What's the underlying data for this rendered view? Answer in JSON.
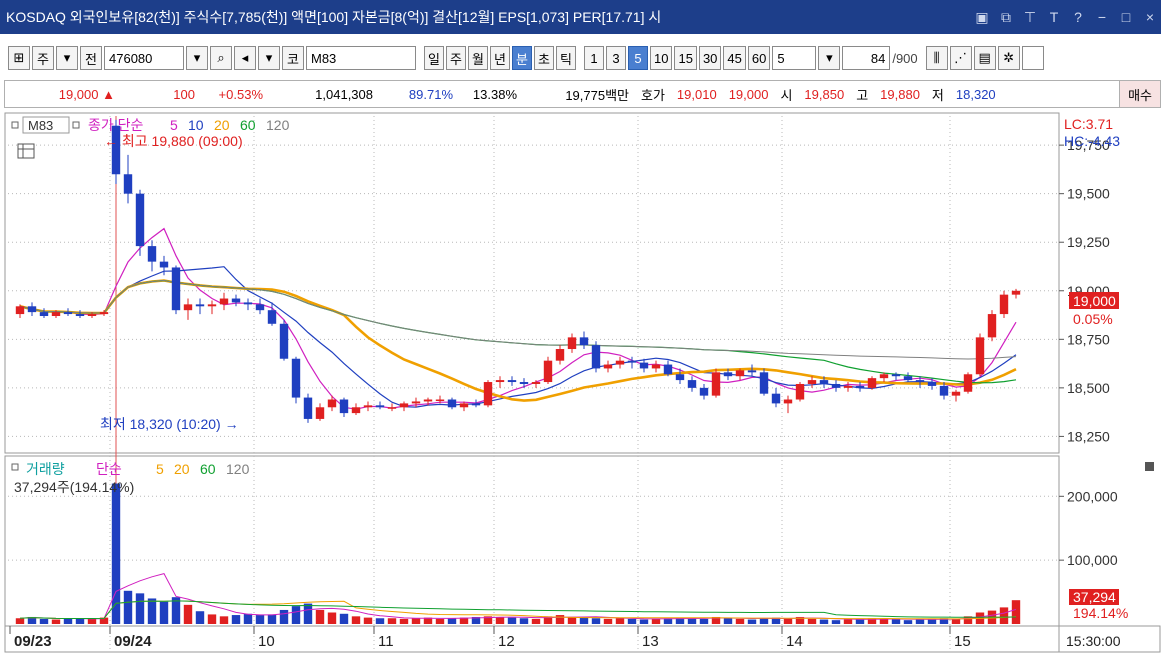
{
  "window": {
    "title": "KOSDAQ 외국인보유[82(천)] 주식수[7,785(천)] 액면[100] 자본금[8(억)] 결산[12월] EPS[1,073] PER[17.71] 시",
    "controls": [
      "minimize",
      "maximize",
      "close"
    ]
  },
  "toolbar": {
    "market": "주",
    "prev": "전",
    "code": "476080",
    "market_short": "코",
    "name": "M83",
    "periods": [
      "일",
      "주",
      "월",
      "년",
      "분",
      "초",
      "틱"
    ],
    "active_period": "분",
    "minutes": [
      "1",
      "3",
      "5",
      "10",
      "15",
      "30",
      "45",
      "60"
    ],
    "active_minute": "5",
    "interval_value": "5",
    "count": "84",
    "count_total": "/900"
  },
  "quote": {
    "price": "19,000",
    "change_arrow": "▲",
    "change": "100",
    "change_pct": "+0.53%",
    "volume": "1,041,308",
    "vol_ratio": "89.71%",
    "turnover": "13.38%",
    "amount": "19,775백만",
    "hoga_label": "호가",
    "bid": "19,010",
    "ask": "19,000",
    "open_label": "시",
    "open": "19,850",
    "high_label": "고",
    "high": "19,880",
    "low_label": "저",
    "low": "18,320",
    "buy_button": "매수"
  },
  "price_panel": {
    "badge": "M83",
    "legend_prefix": "종가 단순",
    "legend_periods": [
      "5",
      "10",
      "20",
      "60",
      "120"
    ],
    "legend_colors": [
      "#d020c0",
      "#2040c0",
      "#f0a000",
      "#10a030",
      "#808080"
    ],
    "lc": "LC:3.71",
    "hc": "HC:-4.43",
    "high_note": "최고 19,880 (09:00)",
    "low_note": "최저 18,320 (10:20)",
    "current_price": "19,000",
    "current_pct": "0.05%"
  },
  "volume_panel": {
    "legend_title": "거래량",
    "legend_prefix": "단순",
    "legend_periods": [
      "5",
      "20",
      "60",
      "120"
    ],
    "current": "37,294주(194.14%)",
    "current_value": "37,294",
    "current_pct": "194.14%"
  },
  "chart_data": {
    "type": "candlestick",
    "price_axis": {
      "ticks": [
        "19,750",
        "19,500",
        "19,250",
        "19,000",
        "18,750",
        "18,500",
        "18,250"
      ],
      "values": [
        19750,
        19500,
        19250,
        19000,
        18750,
        18500,
        18250
      ],
      "ylim": [
        18180,
        19900
      ]
    },
    "volume_axis": {
      "ticks": [
        "200,000",
        "100,000"
      ],
      "values": [
        200000,
        100000
      ],
      "ylim": [
        0,
        260000
      ]
    },
    "time_axis": {
      "labels": [
        "09/23",
        "09/24",
        "10",
        "11",
        "12",
        "13",
        "14",
        "15",
        "15:30:00"
      ]
    },
    "candles": [
      [
        18880,
        18930,
        18860,
        18920
      ],
      [
        18920,
        18940,
        18870,
        18890
      ],
      [
        18890,
        18910,
        18860,
        18870
      ],
      [
        18870,
        18900,
        18860,
        18890
      ],
      [
        18890,
        18910,
        18870,
        18880
      ],
      [
        18880,
        18900,
        18860,
        18870
      ],
      [
        18870,
        18890,
        18860,
        18880
      ],
      [
        18880,
        18900,
        18870,
        18890
      ],
      [
        19850,
        19880,
        19550,
        19600
      ],
      [
        19600,
        19700,
        19450,
        19500
      ],
      [
        19500,
        19520,
        19180,
        19230
      ],
      [
        19230,
        19260,
        19100,
        19150
      ],
      [
        19150,
        19180,
        19080,
        19120
      ],
      [
        19120,
        19130,
        18880,
        18900
      ],
      [
        18900,
        18960,
        18850,
        18930
      ],
      [
        18930,
        18960,
        18880,
        18920
      ],
      [
        18920,
        18950,
        18880,
        18930
      ],
      [
        18930,
        18990,
        18900,
        18960
      ],
      [
        18960,
        18980,
        18920,
        18940
      ],
      [
        18940,
        18960,
        18900,
        18930
      ],
      [
        18930,
        18960,
        18880,
        18900
      ],
      [
        18900,
        18940,
        18820,
        18830
      ],
      [
        18830,
        18850,
        18640,
        18650
      ],
      [
        18650,
        18660,
        18420,
        18450
      ],
      [
        18450,
        18470,
        18320,
        18340
      ],
      [
        18340,
        18420,
        18330,
        18400
      ],
      [
        18400,
        18460,
        18380,
        18440
      ],
      [
        18440,
        18450,
        18350,
        18370
      ],
      [
        18370,
        18420,
        18360,
        18400
      ],
      [
        18400,
        18430,
        18380,
        18410
      ],
      [
        18410,
        18430,
        18390,
        18400
      ],
      [
        18400,
        18420,
        18380,
        18400
      ],
      [
        18400,
        18430,
        18380,
        18420
      ],
      [
        18420,
        18450,
        18400,
        18430
      ],
      [
        18430,
        18450,
        18410,
        18440
      ],
      [
        18440,
        18460,
        18420,
        18440
      ],
      [
        18440,
        18450,
        18390,
        18400
      ],
      [
        18400,
        18430,
        18380,
        18420
      ],
      [
        18420,
        18440,
        18400,
        18410
      ],
      [
        18410,
        18540,
        18400,
        18530
      ],
      [
        18530,
        18560,
        18500,
        18540
      ],
      [
        18540,
        18560,
        18510,
        18530
      ],
      [
        18530,
        18550,
        18500,
        18520
      ],
      [
        18520,
        18540,
        18500,
        18530
      ],
      [
        18530,
        18660,
        18520,
        18640
      ],
      [
        18640,
        18720,
        18620,
        18700
      ],
      [
        18700,
        18780,
        18680,
        18760
      ],
      [
        18760,
        18790,
        18700,
        18720
      ],
      [
        18720,
        18740,
        18580,
        18600
      ],
      [
        18600,
        18640,
        18580,
        18620
      ],
      [
        18620,
        18660,
        18600,
        18640
      ],
      [
        18640,
        18660,
        18600,
        18630
      ],
      [
        18630,
        18650,
        18580,
        18600
      ],
      [
        18600,
        18640,
        18580,
        18620
      ],
      [
        18620,
        18640,
        18560,
        18570
      ],
      [
        18570,
        18600,
        18520,
        18540
      ],
      [
        18540,
        18560,
        18480,
        18500
      ],
      [
        18500,
        18520,
        18440,
        18460
      ],
      [
        18460,
        18600,
        18450,
        18580
      ],
      [
        18580,
        18600,
        18540,
        18560
      ],
      [
        18560,
        18600,
        18540,
        18590
      ],
      [
        18590,
        18620,
        18560,
        18580
      ],
      [
        18580,
        18600,
        18460,
        18470
      ],
      [
        18470,
        18500,
        18400,
        18420
      ],
      [
        18420,
        18460,
        18370,
        18440
      ],
      [
        18440,
        18530,
        18430,
        18520
      ],
      [
        18520,
        18560,
        18500,
        18540
      ],
      [
        18540,
        18560,
        18500,
        18520
      ],
      [
        18520,
        18540,
        18480,
        18500
      ],
      [
        18500,
        18530,
        18480,
        18510
      ],
      [
        18510,
        18530,
        18480,
        18500
      ],
      [
        18500,
        18560,
        18490,
        18550
      ],
      [
        18550,
        18580,
        18530,
        18570
      ],
      [
        18570,
        18580,
        18540,
        18560
      ],
      [
        18560,
        18580,
        18530,
        18540
      ],
      [
        18540,
        18560,
        18500,
        18530
      ],
      [
        18530,
        18550,
        18490,
        18510
      ],
      [
        18510,
        18530,
        18440,
        18460
      ],
      [
        18460,
        18490,
        18430,
        18480
      ],
      [
        18480,
        18580,
        18470,
        18570
      ],
      [
        18570,
        18780,
        18560,
        18760
      ],
      [
        18760,
        18900,
        18740,
        18880
      ],
      [
        18880,
        19000,
        18860,
        18980
      ],
      [
        18980,
        19010,
        18960,
        19000
      ]
    ],
    "volumes": [
      9000,
      11000,
      8000,
      7000,
      8000,
      9000,
      8000,
      10000,
      220000,
      52000,
      48000,
      40000,
      35000,
      42000,
      30000,
      20000,
      15000,
      12000,
      14000,
      16000,
      14000,
      15000,
      22000,
      28000,
      32000,
      22000,
      18000,
      16000,
      12000,
      10000,
      9000,
      9000,
      8000,
      9000,
      10000,
      8000,
      9000,
      10000,
      11000,
      12000,
      11000,
      10000,
      9000,
      8000,
      12000,
      14000,
      11000,
      10000,
      9000,
      8000,
      9000,
      8000,
      7000,
      8000,
      9000,
      10000,
      9000,
      8000,
      11000,
      9000,
      8000,
      7000,
      9000,
      10000,
      9000,
      11000,
      8000,
      7000,
      6000,
      7000,
      8000,
      9000,
      8000,
      7000,
      6000,
      7000,
      8000,
      9000,
      8000,
      12000,
      18000,
      21000,
      26000,
      37294
    ]
  },
  "colors": {
    "up": "#e02020",
    "down": "#1f3fc0",
    "bg": "#ffffff",
    "grid": "#b8b8b8",
    "title_bar": "#1d3e8a"
  }
}
